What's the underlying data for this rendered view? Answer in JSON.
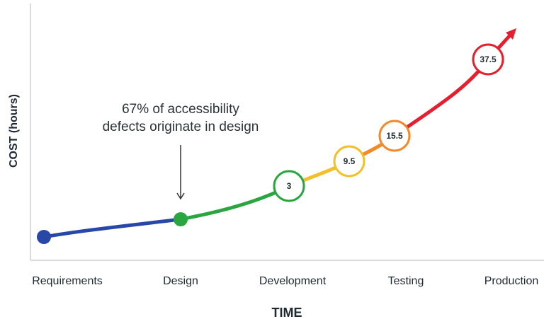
{
  "axis": {
    "y_label": "COST (hours)",
    "x_label": "TIME"
  },
  "stages": [
    "Requirements",
    "Design",
    "Development",
    "Testing",
    "Production"
  ],
  "annotation": [
    "67% of accessibility",
    "defects originate in design"
  ],
  "nodes": [
    {
      "label": "3"
    },
    {
      "label": "9.5"
    },
    {
      "label": "15.5"
    },
    {
      "label": "37.5"
    }
  ]
}
